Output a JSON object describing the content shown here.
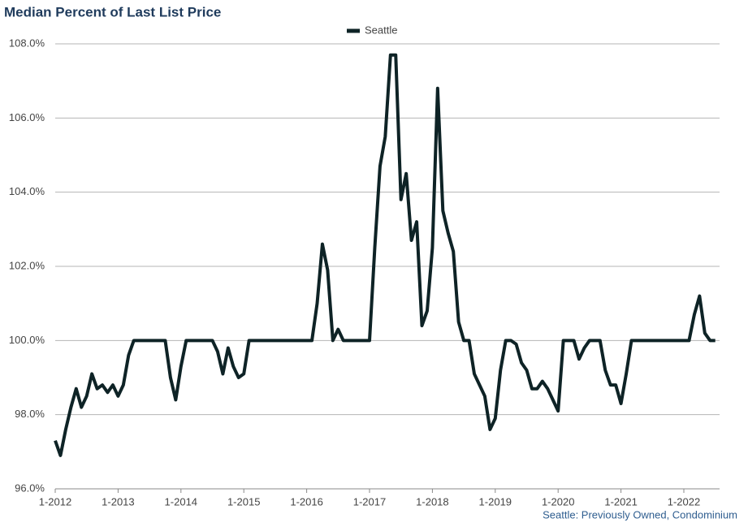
{
  "chart_data": {
    "type": "line",
    "title": "Median Percent of Last List Price",
    "source": "Seattle: Previously Owned, Condominium",
    "categories": [
      "1-2012",
      null,
      null,
      null,
      null,
      null,
      null,
      null,
      null,
      null,
      null,
      null,
      "1-2013",
      null,
      null,
      null,
      null,
      null,
      null,
      null,
      null,
      null,
      null,
      null,
      "1-2014",
      null,
      null,
      null,
      null,
      null,
      null,
      null,
      null,
      null,
      null,
      null,
      "1-2015",
      null,
      null,
      null,
      null,
      null,
      null,
      null,
      null,
      null,
      null,
      null,
      "1-2016",
      null,
      null,
      null,
      null,
      null,
      null,
      null,
      null,
      null,
      null,
      null,
      "1-2017",
      null,
      null,
      null,
      null,
      null,
      null,
      null,
      null,
      null,
      null,
      null,
      "1-2018",
      null,
      null,
      null,
      null,
      null,
      null,
      null,
      null,
      null,
      null,
      null,
      "1-2019",
      null,
      null,
      null,
      null,
      null,
      null,
      null,
      null,
      null,
      null,
      null,
      "1-2020",
      null,
      null,
      null,
      null,
      null,
      null,
      null,
      null,
      null,
      null,
      null,
      "1-2021",
      null,
      null,
      null,
      null,
      null,
      null,
      null,
      null,
      null,
      null,
      null,
      "1-2022",
      null,
      null,
      null,
      null,
      null,
      null
    ],
    "series": [
      {
        "name": "Seattle",
        "color": "#0e2326",
        "values": [
          97.3,
          96.9,
          97.6,
          98.2,
          98.7,
          98.2,
          98.5,
          99.1,
          98.7,
          98.8,
          98.6,
          98.8,
          98.5,
          98.8,
          99.6,
          100,
          100,
          100,
          100,
          100,
          100,
          100,
          99.0,
          98.4,
          99.3,
          100,
          100,
          100,
          100,
          100,
          100,
          99.7,
          99.1,
          99.8,
          99.3,
          99.0,
          99.1,
          100,
          100,
          100,
          100,
          100,
          100,
          100,
          100,
          100,
          100,
          100,
          100,
          100,
          101.0,
          102.6,
          101.9,
          100.0,
          100.3,
          100,
          100,
          100,
          100,
          100,
          100,
          102.5,
          104.7,
          105.5,
          107.7,
          107.7,
          103.8,
          104.5,
          102.7,
          103.2,
          100.4,
          100.8,
          102.5,
          106.8,
          103.5,
          102.9,
          102.4,
          100.5,
          100,
          100,
          99.1,
          98.8,
          98.5,
          97.6,
          97.9,
          99.2,
          100,
          100,
          99.9,
          99.4,
          99.2,
          98.7,
          98.7,
          98.9,
          98.7,
          98.4,
          98.1,
          100,
          100,
          100,
          99.5,
          99.8,
          100,
          100,
          100,
          99.2,
          98.8,
          98.8,
          98.3,
          99.1,
          100,
          100,
          100,
          100,
          100,
          100,
          100,
          100,
          100,
          100,
          100,
          100,
          100.7,
          101.2,
          100.2,
          100,
          100
        ]
      }
    ],
    "ylim": [
      96,
      108
    ],
    "yticks": [
      {
        "value": 96,
        "label": "96.0%"
      },
      {
        "value": 98,
        "label": "98.0%"
      },
      {
        "value": 100,
        "label": "100.0%"
      },
      {
        "value": 102,
        "label": "102.0%"
      },
      {
        "value": 104,
        "label": "104.0%"
      },
      {
        "value": 106,
        "label": "106.0%"
      },
      {
        "value": 108,
        "label": "108.0%"
      }
    ],
    "grid": true,
    "legend": "top"
  }
}
